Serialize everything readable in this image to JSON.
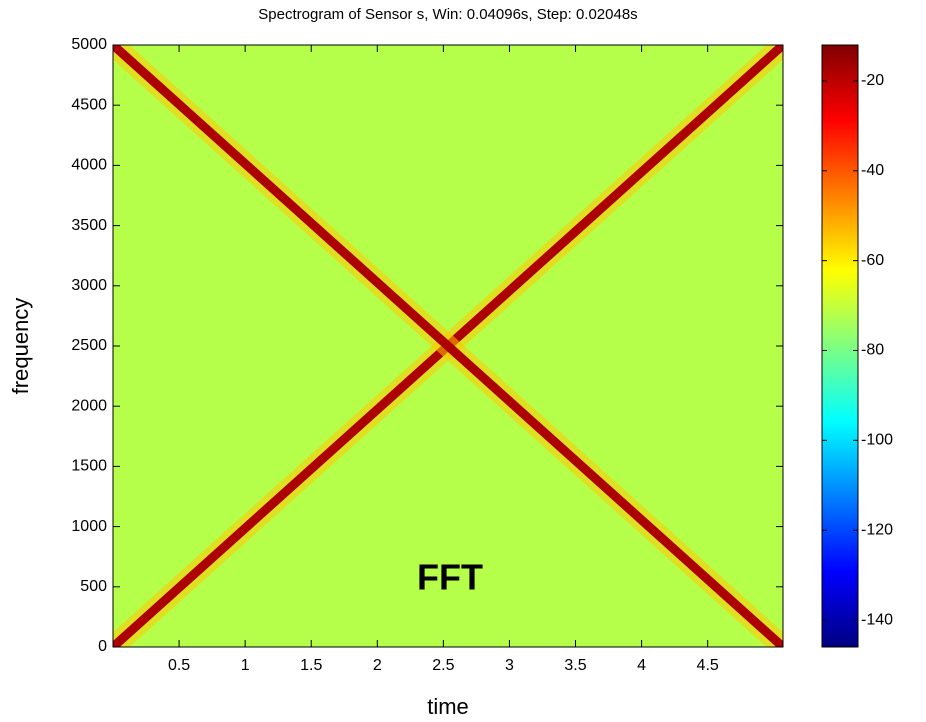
{
  "chart_data": {
    "type": "spectrogram",
    "title": "Spectrogram of Sensor s, Win: 0.04096s, Step: 0.02048s",
    "xlabel": "time",
    "ylabel": "frequency",
    "annotation": "FFT",
    "xlim": [
      0,
      5.07
    ],
    "xticks": [
      0.5,
      1,
      1.5,
      2,
      2.5,
      3,
      3.5,
      4,
      4.5
    ],
    "ylim": [
      0,
      5000
    ],
    "yticks": [
      0,
      500,
      1000,
      1500,
      2000,
      2500,
      3000,
      3500,
      4000,
      4500,
      5000
    ],
    "background_level": -72,
    "ridges": [
      {
        "x": [
          0,
          5.07
        ],
        "y": [
          0,
          5000
        ],
        "level": -18
      },
      {
        "x": [
          0,
          5.07
        ],
        "y": [
          5000,
          0
        ],
        "level": -18
      }
    ],
    "clim": [
      -146,
      -12
    ],
    "cticks": [
      -20,
      -40,
      -60,
      -80,
      -100,
      -120,
      -140
    ],
    "colormap": "jet"
  }
}
